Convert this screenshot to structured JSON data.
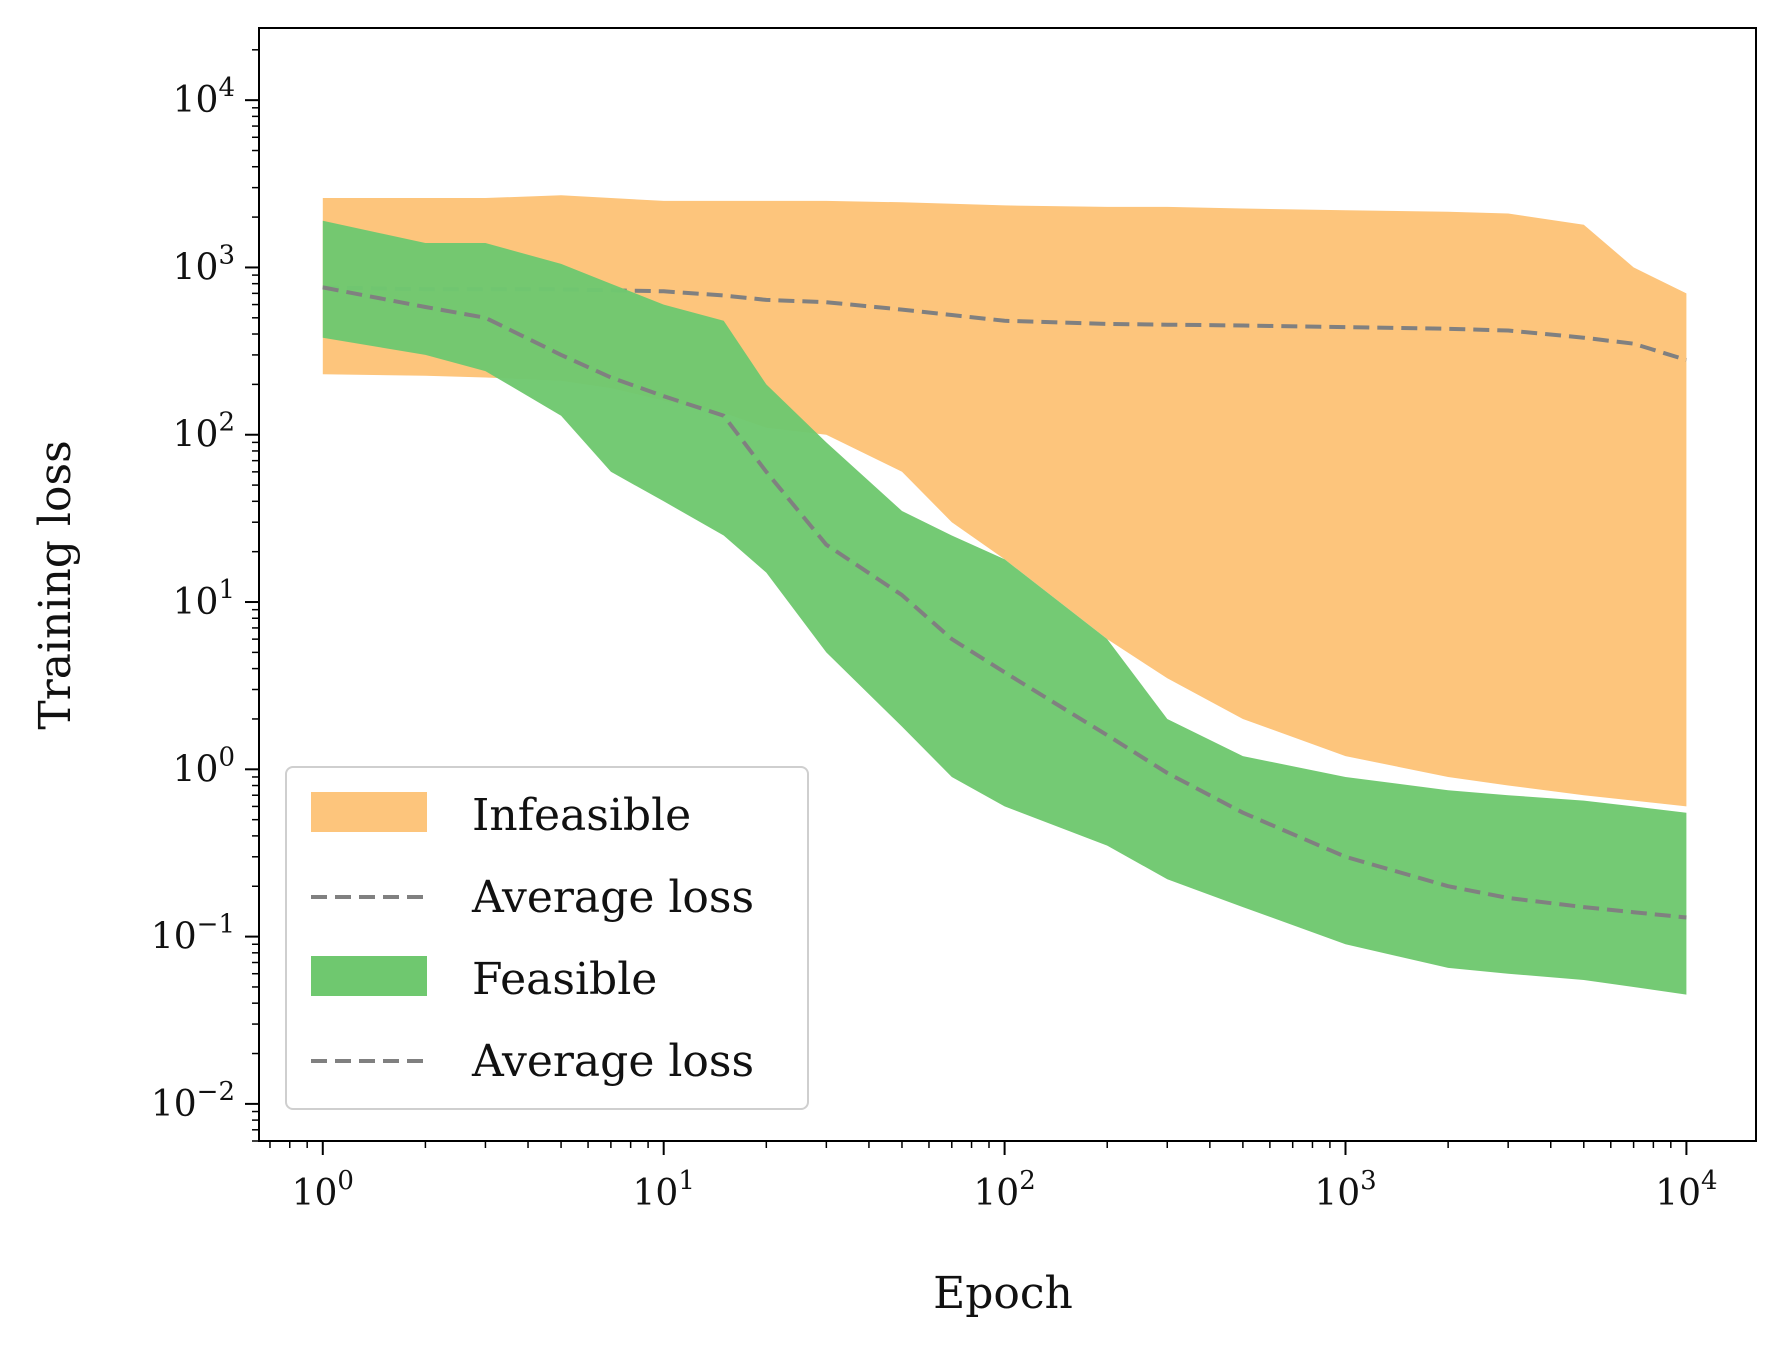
{
  "chart_data": {
    "type": "area",
    "xlabel": "Epoch",
    "ylabel": "Training loss",
    "xscale": "log",
    "yscale": "log",
    "xlim": [
      0.65,
      16000
    ],
    "ylim": [
      0.006,
      27000
    ],
    "x_ticks": [
      {
        "base": "10",
        "exp": "0"
      },
      {
        "base": "10",
        "exp": "1"
      },
      {
        "base": "10",
        "exp": "2"
      },
      {
        "base": "10",
        "exp": "3"
      },
      {
        "base": "10",
        "exp": "4"
      }
    ],
    "y_ticks": [
      {
        "base": "10",
        "exp": "−2"
      },
      {
        "base": "10",
        "exp": "−1"
      },
      {
        "base": "10",
        "exp": "0"
      },
      {
        "base": "10",
        "exp": "1"
      },
      {
        "base": "10",
        "exp": "2"
      },
      {
        "base": "10",
        "exp": "3"
      },
      {
        "base": "10",
        "exp": "4"
      }
    ],
    "legend": {
      "position": "lower-left",
      "entries": [
        {
          "label": "Infeasible",
          "kind": "patch",
          "color": "#fdc57c"
        },
        {
          "label": "Average loss",
          "kind": "dashed-line",
          "color": "#808080"
        },
        {
          "label": "Feasible",
          "kind": "patch",
          "color": "#6fc86f"
        },
        {
          "label": "Average loss",
          "kind": "dashed-line",
          "color": "#808080"
        }
      ]
    },
    "series": [
      {
        "name": "Infeasible",
        "kind": "band",
        "color": "#fdc57c",
        "x": [
          1,
          2,
          3,
          5,
          7,
          10,
          15,
          20,
          30,
          50,
          70,
          100,
          200,
          300,
          500,
          1000,
          2000,
          3000,
          5000,
          7000,
          10000
        ],
        "lower": [
          230,
          225,
          220,
          210,
          190,
          160,
          135,
          110,
          100,
          60,
          30,
          18,
          6,
          3.5,
          2,
          1.2,
          0.9,
          0.8,
          0.7,
          0.65,
          0.6
        ],
        "upper": [
          2600,
          2600,
          2600,
          2700,
          2600,
          2500,
          2500,
          2500,
          2500,
          2450,
          2400,
          2350,
          2300,
          2300,
          2250,
          2200,
          2150,
          2100,
          1800,
          1000,
          700
        ]
      },
      {
        "name": "Infeasible average loss",
        "kind": "dashed-line",
        "color": "#808080",
        "x": [
          1,
          2,
          3,
          5,
          7,
          10,
          15,
          20,
          30,
          50,
          70,
          100,
          200,
          300,
          500,
          1000,
          2000,
          3000,
          5000,
          7000,
          10000
        ],
        "values": [
          760,
          740,
          740,
          740,
          730,
          720,
          680,
          640,
          620,
          560,
          520,
          480,
          460,
          455,
          450,
          440,
          430,
          420,
          380,
          350,
          280
        ]
      },
      {
        "name": "Feasible",
        "kind": "band",
        "color": "#6fc86f",
        "x": [
          1,
          2,
          3,
          5,
          7,
          10,
          15,
          20,
          30,
          50,
          70,
          100,
          200,
          300,
          500,
          1000,
          2000,
          3000,
          5000,
          7000,
          10000
        ],
        "lower": [
          380,
          300,
          240,
          130,
          60,
          40,
          25,
          15,
          5,
          1.8,
          0.9,
          0.6,
          0.35,
          0.22,
          0.15,
          0.09,
          0.065,
          0.06,
          0.055,
          0.05,
          0.045
        ],
        "upper": [
          1900,
          1400,
          1400,
          1050,
          800,
          600,
          480,
          200,
          90,
          35,
          25,
          18,
          6,
          2,
          1.2,
          0.9,
          0.75,
          0.7,
          0.65,
          0.6,
          0.55
        ]
      },
      {
        "name": "Feasible average loss",
        "kind": "dashed-line",
        "color": "#808080",
        "x": [
          1,
          2,
          3,
          5,
          7,
          10,
          15,
          20,
          30,
          50,
          70,
          100,
          200,
          300,
          500,
          1000,
          2000,
          3000,
          5000,
          7000,
          10000
        ],
        "values": [
          760,
          580,
          500,
          300,
          220,
          170,
          130,
          60,
          22,
          11,
          6,
          3.8,
          1.6,
          0.95,
          0.55,
          0.3,
          0.2,
          0.17,
          0.15,
          0.14,
          0.13
        ]
      }
    ]
  }
}
